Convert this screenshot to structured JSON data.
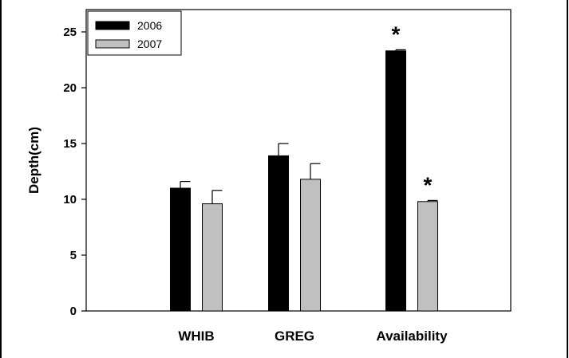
{
  "chart_data": {
    "type": "bar",
    "title": "",
    "xlabel": "",
    "ylabel": "Depth(cm)",
    "ylim": [
      0,
      27
    ],
    "yticks": [
      0,
      5,
      10,
      15,
      20,
      25
    ],
    "categories": [
      "WHIB",
      "GREG",
      "Availability"
    ],
    "series": [
      {
        "name": "2006",
        "color": "#000000",
        "values": [
          11.0,
          13.9,
          23.3
        ],
        "errors": [
          0.6,
          1.1,
          0.1
        ]
      },
      {
        "name": "2007",
        "color": "#c0c0c0",
        "values": [
          9.6,
          11.8,
          9.8
        ],
        "errors": [
          1.2,
          1.4,
          0.1
        ]
      }
    ],
    "annotations": [
      {
        "text": "*",
        "series": 0,
        "category": 2
      },
      {
        "text": "*",
        "series": 1,
        "category": 2
      }
    ],
    "legend_position": "top-left",
    "grid": false
  }
}
